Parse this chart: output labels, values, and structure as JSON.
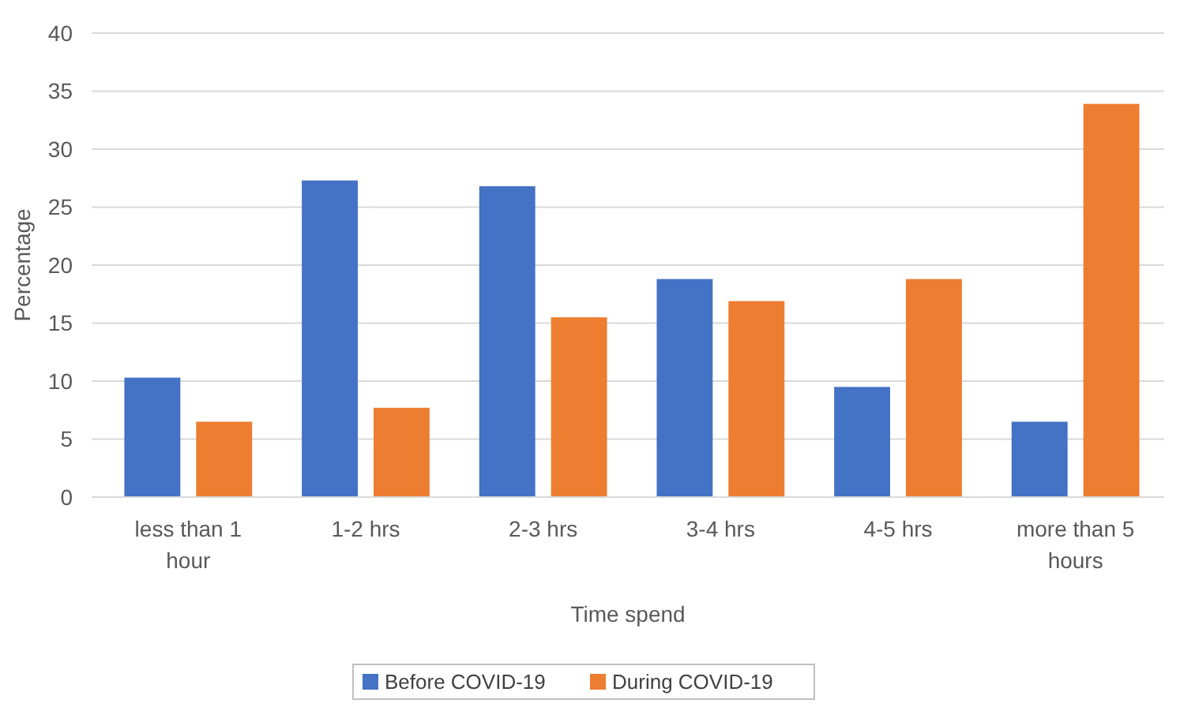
{
  "chart_data": {
    "type": "bar",
    "xlabel": "Time spend",
    "ylabel": "Percentage",
    "categories": [
      "less than 1 hour",
      "1-2 hrs",
      "2-3 hrs",
      "3-4 hrs",
      "4-5 hrs",
      "more than 5 hours"
    ],
    "series": [
      {
        "name": "Before COVID-19",
        "color": "#4472c4",
        "values": [
          10.3,
          27.3,
          26.8,
          18.8,
          9.5,
          6.5
        ]
      },
      {
        "name": "During COVID-19",
        "color": "#ed7d31",
        "values": [
          6.5,
          7.7,
          15.5,
          16.9,
          18.8,
          33.9
        ]
      }
    ],
    "ylim": [
      0,
      40
    ],
    "yticks": [
      0,
      5,
      10,
      15,
      20,
      25,
      30,
      35,
      40
    ],
    "grid": "y",
    "legend": "bottom"
  }
}
